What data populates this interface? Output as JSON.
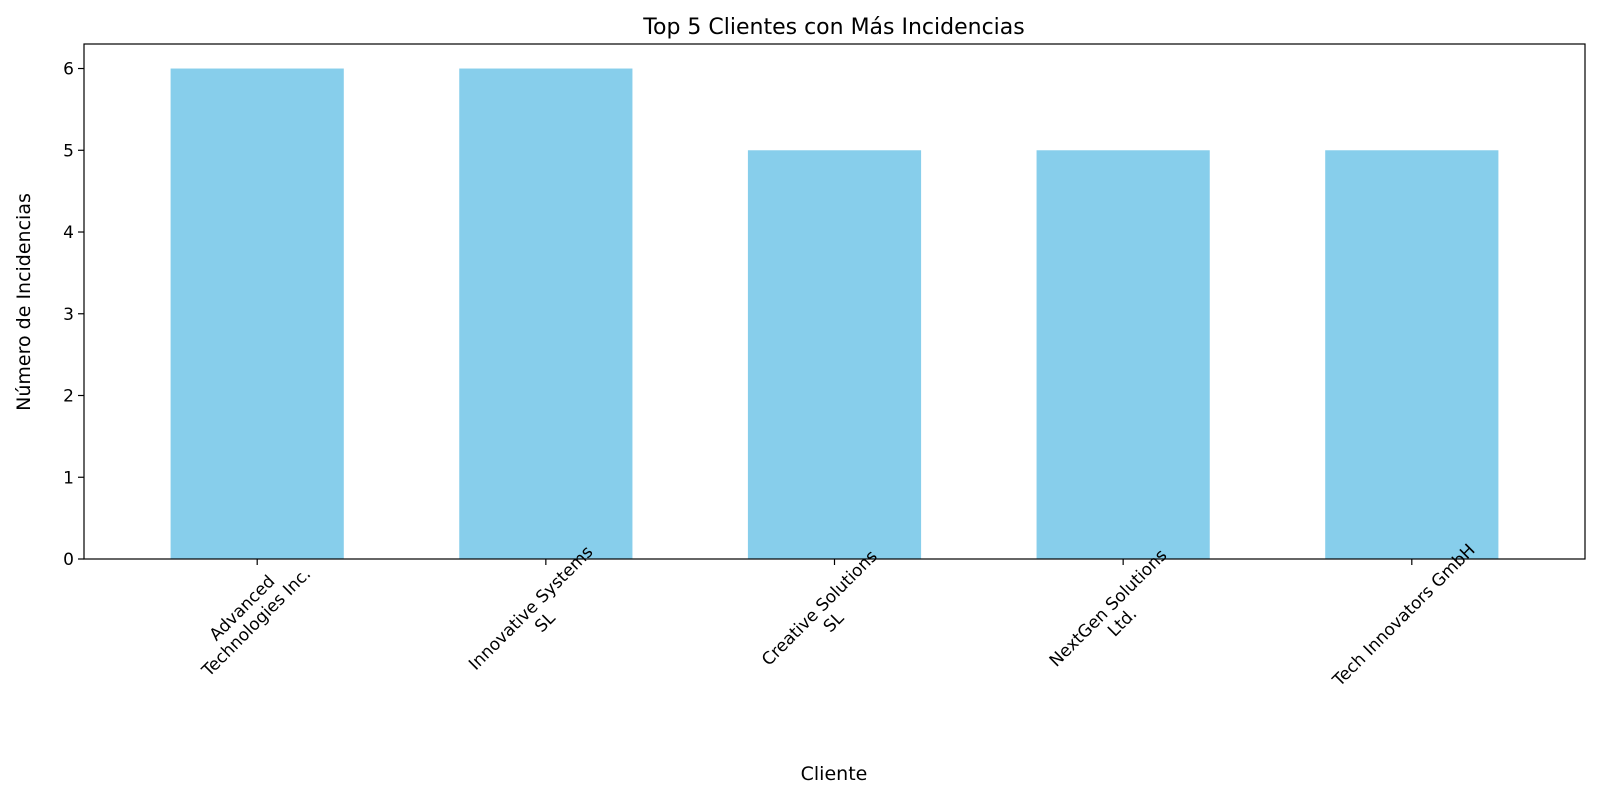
{
  "chart_data": {
    "type": "bar",
    "title": "Top 5 Clientes con Más Incidencias",
    "xlabel": "Cliente",
    "ylabel": "Número de Incidencias",
    "categories": [
      [
        "Advanced",
        "Technologies Inc."
      ],
      [
        "Innovative Systems",
        "SL"
      ],
      [
        "Creative Solutions",
        "SL"
      ],
      [
        "NextGen Solutions",
        "Ltd."
      ],
      [
        "Tech Innovators GmbH"
      ]
    ],
    "values": [
      6,
      6,
      5,
      5,
      5
    ],
    "ylim": [
      0,
      6.3
    ],
    "yticks": [
      0,
      1,
      2,
      3,
      4,
      5,
      6
    ],
    "bar_color": "#87ceeb",
    "grid": false,
    "legend": false
  }
}
